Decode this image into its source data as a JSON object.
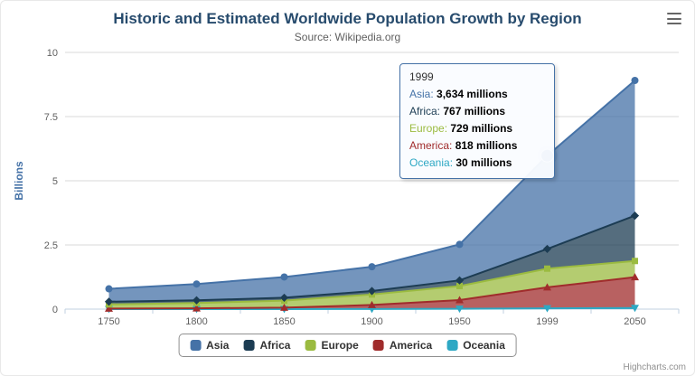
{
  "header": {
    "title": "Historic and Estimated Worldwide Population Growth by Region",
    "subtitle": "Source: Wikipedia.org"
  },
  "credits": "Highcharts.com",
  "chart_data": {
    "type": "area",
    "stacked": true,
    "categories": [
      "1750",
      "1800",
      "1850",
      "1900",
      "1950",
      "1999",
      "2050"
    ],
    "series": [
      {
        "name": "Asia",
        "color": "#4572A7",
        "marker": "circle",
        "values_millions": [
          502,
          635,
          809,
          947,
          1402,
          3634,
          5268
        ]
      },
      {
        "name": "Africa",
        "color": "#1C3C53",
        "marker": "diamond",
        "values_millions": [
          106,
          107,
          111,
          133,
          221,
          767,
          1766
        ]
      },
      {
        "name": "Europe",
        "color": "#9BBB40",
        "marker": "square",
        "values_millions": [
          163,
          203,
          276,
          408,
          547,
          729,
          628
        ]
      },
      {
        "name": "America",
        "color": "#A02C2C",
        "marker": "triangle",
        "values_millions": [
          18,
          31,
          54,
          156,
          339,
          818,
          1201
        ]
      },
      {
        "name": "Oceania",
        "color": "#2EA8C4",
        "marker": "triangle-down",
        "values_millions": [
          2,
          2,
          2,
          6,
          13,
          30,
          46
        ]
      }
    ],
    "unit_divisor": 1000,
    "ylabel": "Billions",
    "yticks": [
      0,
      2.5,
      5,
      7.5,
      10
    ],
    "ylim": [
      0,
      10
    ],
    "grid": true,
    "legend_position": "bottom"
  },
  "tooltip": {
    "header": "1999",
    "rows": [
      {
        "name": "Asia",
        "value": "3,634 millions"
      },
      {
        "name": "Africa",
        "value": "767 millions"
      },
      {
        "name": "Europe",
        "value": "729 millions"
      },
      {
        "name": "America",
        "value": "818 millions"
      },
      {
        "name": "Oceania",
        "value": "30 millions"
      }
    ]
  }
}
